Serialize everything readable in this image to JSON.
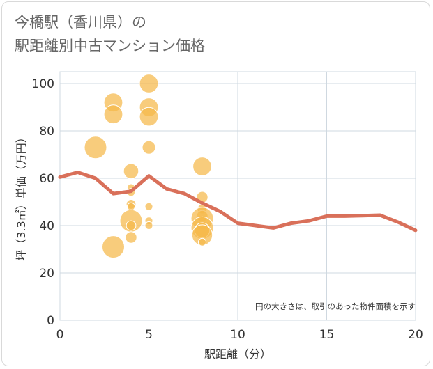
{
  "chart_data": {
    "type": "scatter",
    "title": [
      "今橋駅（香川県）の",
      "駅距離別中古マンション価格"
    ],
    "xlabel": "駅距離（分）",
    "ylabel": "坪（3.3㎡）単価（万円）",
    "xlim": [
      0,
      20
    ],
    "ylim": [
      0,
      105
    ],
    "xticks": [
      0,
      5,
      10,
      15,
      20
    ],
    "yticks": [
      0,
      20,
      40,
      60,
      80,
      100
    ],
    "note": "円の大きさは、取引のあった物件面積を示す",
    "colors": {
      "bubble": "#f5b94a",
      "line": "#d9705a",
      "grid": "#cfd8e0"
    },
    "bubbles": [
      {
        "x": 2,
        "y": 73,
        "size": 5
      },
      {
        "x": 3,
        "y": 92,
        "size": 4
      },
      {
        "x": 3,
        "y": 87,
        "size": 4
      },
      {
        "x": 3,
        "y": 31,
        "size": 5
      },
      {
        "x": 4,
        "y": 63,
        "size": 3
      },
      {
        "x": 4,
        "y": 56,
        "size": 1
      },
      {
        "x": 4,
        "y": 54,
        "size": 1
      },
      {
        "x": 4,
        "y": 49,
        "size": 1.5
      },
      {
        "x": 4,
        "y": 48,
        "size": 1
      },
      {
        "x": 4,
        "y": 42,
        "size": 5
      },
      {
        "x": 4,
        "y": 40,
        "size": 1.5
      },
      {
        "x": 4,
        "y": 35,
        "size": 2
      },
      {
        "x": 5,
        "y": 100,
        "size": 4
      },
      {
        "x": 5,
        "y": 90,
        "size": 4
      },
      {
        "x": 5,
        "y": 86,
        "size": 4
      },
      {
        "x": 5,
        "y": 73,
        "size": 2.5
      },
      {
        "x": 5,
        "y": 48,
        "size": 1
      },
      {
        "x": 5,
        "y": 42,
        "size": 1
      },
      {
        "x": 5,
        "y": 40,
        "size": 1
      },
      {
        "x": 8,
        "y": 65,
        "size": 4
      },
      {
        "x": 8,
        "y": 52,
        "size": 2
      },
      {
        "x": 8,
        "y": 47,
        "size": 1.5
      },
      {
        "x": 8,
        "y": 44,
        "size": 2
      },
      {
        "x": 8,
        "y": 43,
        "size": 5
      },
      {
        "x": 8,
        "y": 39,
        "size": 5
      },
      {
        "x": 8,
        "y": 38,
        "size": 3
      },
      {
        "x": 8,
        "y": 36,
        "size": 4.5
      },
      {
        "x": 8,
        "y": 33,
        "size": 1
      }
    ],
    "average_line": {
      "x": [
        0,
        1,
        2,
        3,
        4,
        5,
        6,
        7,
        8,
        9,
        10,
        11,
        12,
        13,
        14,
        15,
        16,
        17,
        18,
        19,
        20
      ],
      "y": [
        60.5,
        62.5,
        60,
        53.5,
        54.5,
        61,
        55.5,
        53.5,
        49.5,
        46,
        41,
        40,
        39,
        41,
        42,
        44,
        44,
        44.2,
        44.4,
        41.5,
        38
      ]
    }
  }
}
